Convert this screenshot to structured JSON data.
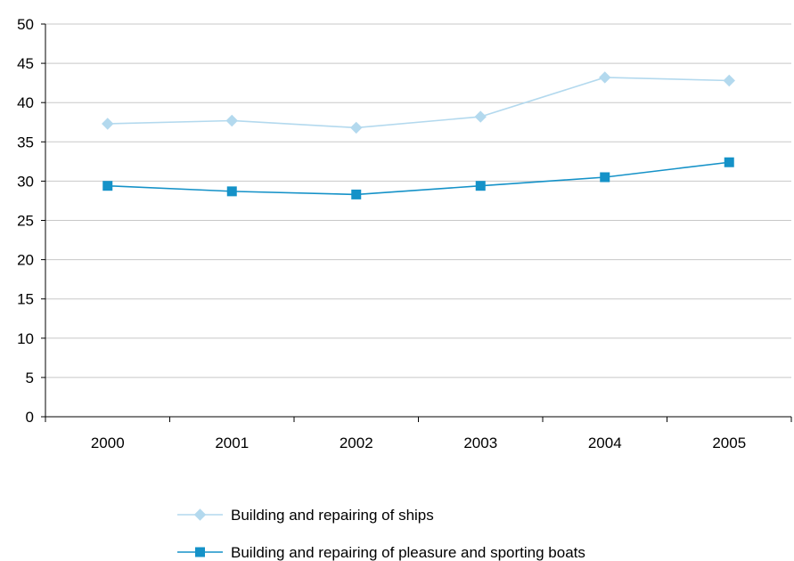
{
  "chart_data": {
    "type": "line",
    "categories": [
      "2000",
      "2001",
      "2002",
      "2003",
      "2004",
      "2005"
    ],
    "ylim": [
      0,
      50
    ],
    "yticks": [
      0,
      5,
      10,
      15,
      20,
      25,
      30,
      35,
      40,
      45,
      50
    ],
    "grid": true,
    "legend_position": "bottom",
    "series": [
      {
        "name": "Building and repairing of ships",
        "values": [
          37.3,
          37.7,
          36.8,
          38.2,
          43.2,
          42.8
        ],
        "color": "#b3d9ee",
        "marker": "diamond"
      },
      {
        "name": "Building and repairing of pleasure and sporting boats",
        "values": [
          29.4,
          28.7,
          28.3,
          29.4,
          30.5,
          32.4
        ],
        "color": "#1592c8",
        "marker": "square"
      }
    ]
  }
}
